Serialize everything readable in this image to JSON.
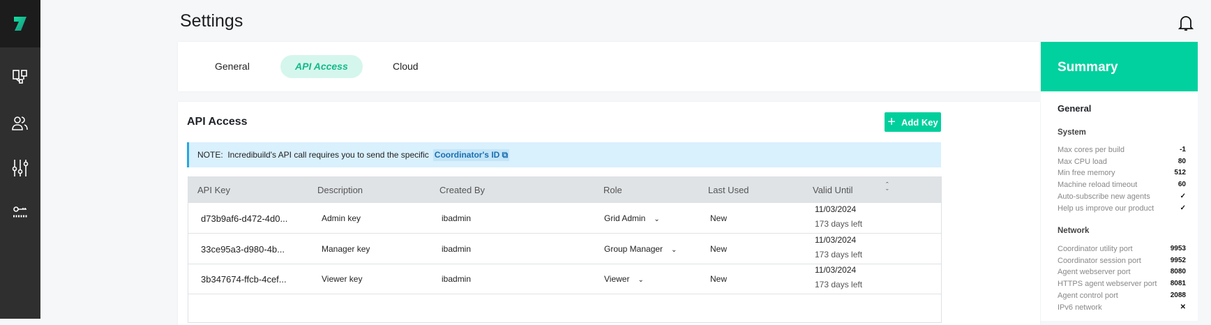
{
  "header": {
    "title": "Settings",
    "icon": "bell-icon"
  },
  "sidebar": {
    "items": [
      {
        "icon": "agents-icon"
      },
      {
        "icon": "users-icon"
      },
      {
        "icon": "sliders-icon"
      },
      {
        "icon": "key-icon"
      }
    ]
  },
  "tabs": [
    {
      "label": "General"
    },
    {
      "label": "API Access",
      "active": true
    },
    {
      "label": "Cloud"
    }
  ],
  "api": {
    "title": "API Access",
    "add_label": "Add Key",
    "note_prefix": "NOTE:",
    "note_text": "Incredibuild's API call requires you to send the specific",
    "note_link": "Coordinator's ID",
    "columns": [
      "API Key",
      "Description",
      "Created By",
      "Role",
      "Last Used",
      "Valid Until"
    ],
    "rows": [
      {
        "key": "d73b9af6-d472-4d0...",
        "description": "Admin key",
        "created_by": "ibadmin",
        "role": "Grid Admin",
        "last_used": "New",
        "valid_until": "11/03/2024",
        "days_left": "173 days left"
      },
      {
        "key": "33ce95a3-d980-4b...",
        "description": "Manager key",
        "created_by": "ibadmin",
        "role": "Group Manager",
        "last_used": "New",
        "valid_until": "11/03/2024",
        "days_left": "173 days left"
      },
      {
        "key": "3b347674-ffcb-4cef...",
        "description": "Viewer key",
        "created_by": "ibadmin",
        "role": "Viewer",
        "last_used": "New",
        "valid_until": "11/03/2024",
        "days_left": "173 days left"
      }
    ]
  },
  "summary": {
    "title": "Summary",
    "section": "General",
    "system": {
      "title": "System",
      "rows": [
        {
          "label": "Max cores per build",
          "value": "-1"
        },
        {
          "label": "Max CPU load",
          "value": "80"
        },
        {
          "label": "Min free memory",
          "value": "512"
        },
        {
          "label": "Machine reload timeout",
          "value": "60"
        },
        {
          "label": "Auto-subscribe new agents",
          "value": "✓"
        },
        {
          "label": "Help us improve our product",
          "value": "✓"
        }
      ]
    },
    "network": {
      "title": "Network",
      "rows": [
        {
          "label": "Coordinator utility port",
          "value": "9953"
        },
        {
          "label": "Coordinator session port",
          "value": "9952"
        },
        {
          "label": "Agent webserver port",
          "value": "8080"
        },
        {
          "label": "HTTPS agent webserver port",
          "value": "8081"
        },
        {
          "label": "Agent control port",
          "value": "2088"
        },
        {
          "label": "IPv6 network",
          "value": "✕"
        }
      ]
    }
  },
  "colors": {
    "accent": "#00d19e",
    "sidebar": "#2f2f2f",
    "note_bg": "#d9f0fd"
  }
}
